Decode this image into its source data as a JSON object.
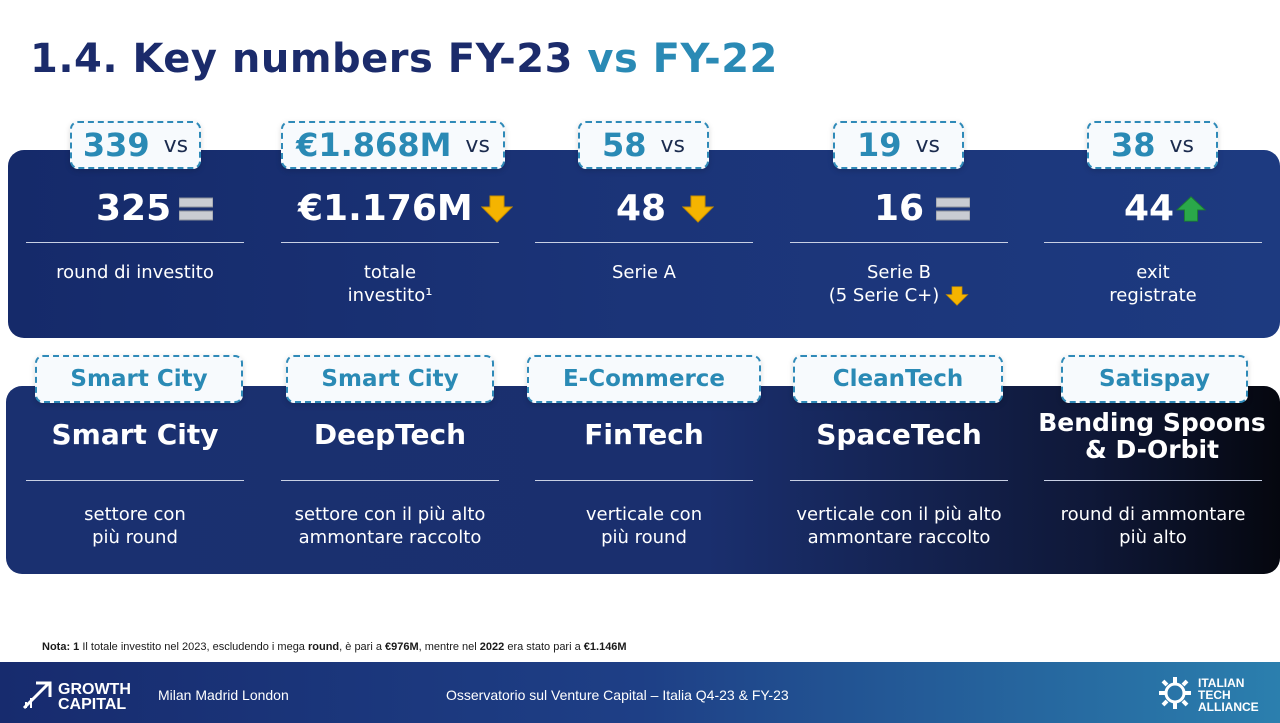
{
  "title": {
    "main": "1.4. Key numbers FY-23",
    "accent": "vs FY-22"
  },
  "colors": {
    "navy": "#1b2b6b",
    "accent": "#2a8ab5",
    "arrow_down": "#f5b400",
    "arrow_up": "#2aa84a"
  },
  "vs_word": "vs",
  "metrics": [
    {
      "current": "339",
      "previous": "325",
      "trend_icon": "equal-icon",
      "label_line1": "round di investito",
      "label_line2": ""
    },
    {
      "current": "€1.868M",
      "previous": "€1.176M",
      "trend_icon": "arrow-down-icon",
      "label_line1": "totale",
      "label_line2": "investito¹"
    },
    {
      "current": "58",
      "previous": "48",
      "trend_icon": "arrow-down-icon",
      "label_line1": "Serie A",
      "label_line2": ""
    },
    {
      "current": "19",
      "previous": "16",
      "trend_icon": "equal-icon",
      "label_line1": "Serie B",
      "label_line2": "(5 Serie C+)"
    },
    {
      "current": "38",
      "previous": "44",
      "trend_icon": "arrow-up-icon",
      "label_line1": "exit",
      "label_line2": "registrate"
    }
  ],
  "sectors": [
    {
      "current": "Smart City",
      "previous": "Smart City",
      "label_line1": "settore con",
      "label_line2": "più round"
    },
    {
      "current": "Smart City",
      "previous": "DeepTech",
      "label_line1": "settore con il più alto",
      "label_line2": "ammontare raccolto"
    },
    {
      "current": "E-Commerce",
      "previous": "FinTech",
      "label_line1": "verticale con",
      "label_line2": "più round"
    },
    {
      "current": "CleanTech",
      "previous": "SpaceTech",
      "label_line1": "verticale con il più alto",
      "label_line2": "ammontare raccolto"
    },
    {
      "current": "Satispay",
      "previous_line1": "Bending Spoons",
      "previous_line2": "& D-Orbit",
      "label_line1": "round di ammontare",
      "label_line2": "più alto"
    }
  ],
  "note": {
    "prefix": "Nota: 1",
    "text1": " Il totale investito nel 2023, escludendo i mega ",
    "bold1": "round",
    "text2": ", è pari a ",
    "bold2": "€976M",
    "text3": ", mentre nel ",
    "bold3": "2022",
    "text4": " era stato pari a ",
    "bold4": "€1.146M"
  },
  "footer": {
    "logo_line1": "GROWTH",
    "logo_line2": "CAPITAL",
    "cities": "Milan Madrid London",
    "center": "Osservatorio sul Venture Capital – Italia Q4-23 & FY-23",
    "ita_line1": "ITALIAN",
    "ita_line2": "TECH",
    "ita_line3": "ALLIANCE"
  }
}
